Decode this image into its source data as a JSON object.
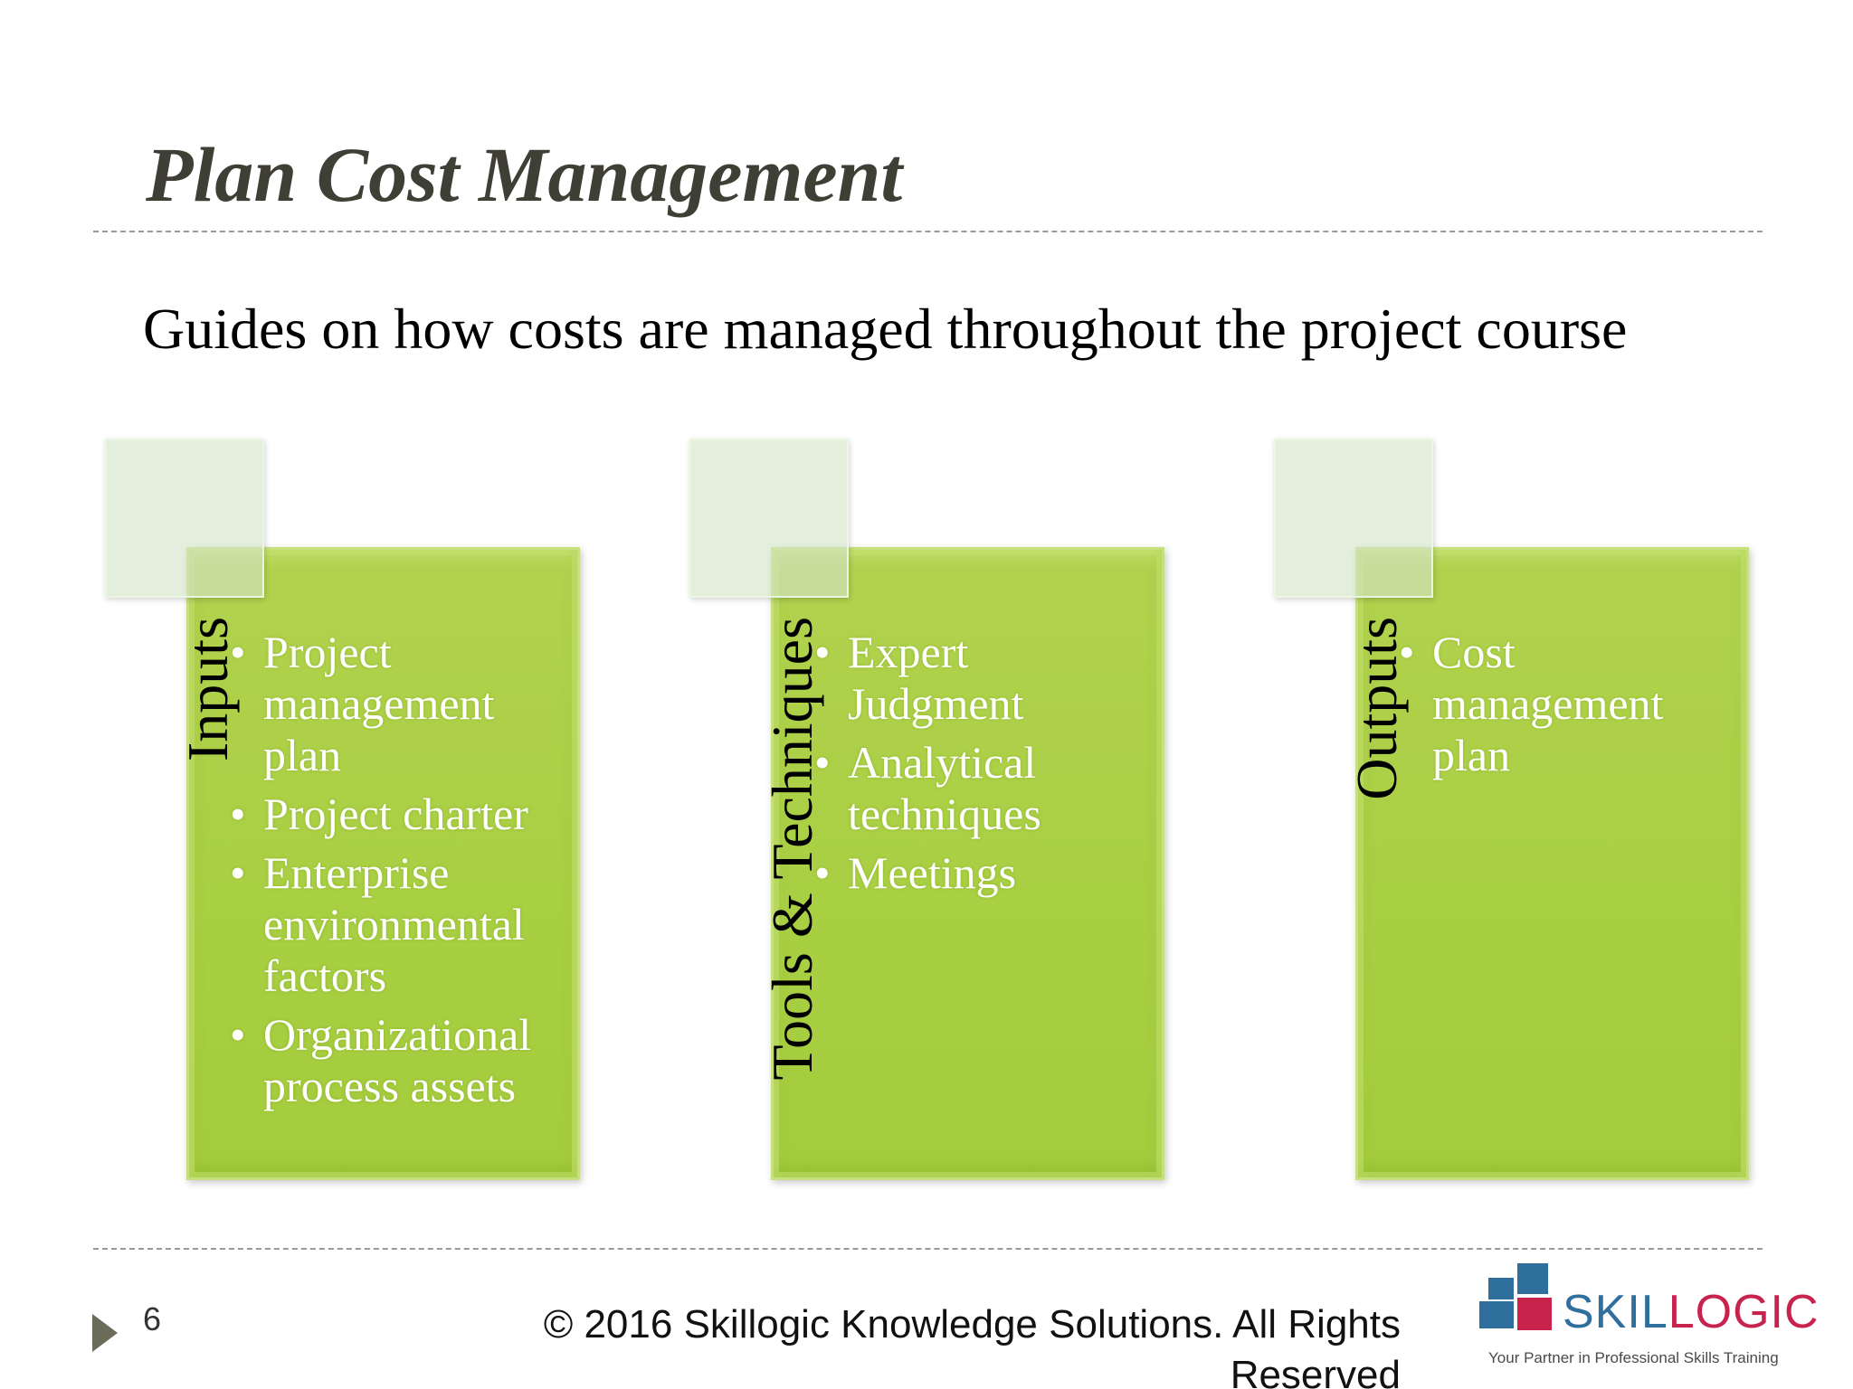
{
  "slide": {
    "title": "Plan Cost Management",
    "subtitle": "Guides on how costs are managed throughout the project course"
  },
  "panels": [
    {
      "label": "Inputs",
      "items": [
        "Project management plan",
        "Project charter",
        "Enterprise environmental factors",
        "Organizational process assets"
      ]
    },
    {
      "label": "Tools & Techniques",
      "items": [
        "Expert Judgment",
        "Analytical techniques",
        "Meetings"
      ]
    },
    {
      "label": "Outputs",
      "items": [
        "Cost management plan"
      ]
    }
  ],
  "footer": {
    "slide_number": "6",
    "copyright": "© 2016 Skillogic Knowledge Solutions. All Rights Reserved",
    "nav_icon": "play-triangle-icon"
  },
  "logo": {
    "word_part1": "SKIL",
    "word_part2": "LOGIC",
    "tagline": "Your Partner in Professional Skills Training"
  },
  "colors": {
    "card_green": "#a9cf43",
    "title_text": "#403f35",
    "logo_blue": "#2e6f9e",
    "logo_red": "#c8234c"
  }
}
